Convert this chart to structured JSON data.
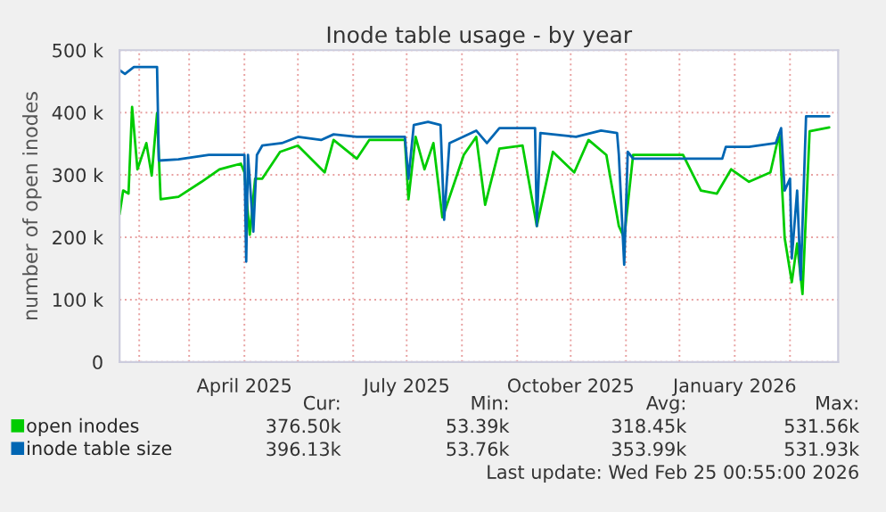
{
  "chart_data": {
    "type": "line",
    "title": "Inode table usage - by year",
    "ylabel": "number of open inodes",
    "x": [
      "2025-01-21",
      "2025-01-24",
      "2025-01-29",
      "2025-02-11",
      "2025-02-12",
      "2025-02-23",
      "2025-03-12",
      "2025-04-01",
      "2025-04-02",
      "2025-04-03",
      "2025-04-06",
      "2025-04-08",
      "2025-04-11",
      "2025-04-22",
      "2025-05-01",
      "2025-05-14",
      "2025-05-21",
      "2025-06-03",
      "2025-06-30",
      "2025-07-02",
      "2025-07-05",
      "2025-07-13",
      "2025-07-20",
      "2025-07-22",
      "2025-07-25",
      "2025-08-09",
      "2025-08-15",
      "2025-08-22",
      "2025-09-11",
      "2025-09-12",
      "2025-09-14",
      "2025-10-04",
      "2025-10-18",
      "2025-10-27",
      "2025-10-28",
      "2025-10-31",
      "2025-11-02",
      "2025-11-05",
      "2025-11-30",
      "2025-12-25",
      "2025-12-27",
      "2026-01-09",
      "2026-01-24",
      "2026-01-27",
      "2026-01-29",
      "2026-02-01",
      "2026-02-02",
      "2026-02-05",
      "2026-02-07",
      "2026-02-10",
      "2026-02-23"
    ],
    "series": [
      {
        "name": "open inodes",
        "color": "#00cc00",
        "x": [
          "2025-01-21",
          "2025-01-23",
          "2025-01-26",
          "2025-01-28",
          "2025-01-31",
          "2025-02-05",
          "2025-02-08",
          "2025-02-11",
          "2025-02-13",
          "2025-02-23",
          "2025-03-08",
          "2025-03-18",
          "2025-03-30",
          "2025-04-01",
          "2025-04-04",
          "2025-04-07",
          "2025-04-11",
          "2025-04-21",
          "2025-05-01",
          "2025-05-16",
          "2025-05-21",
          "2025-06-03",
          "2025-06-10",
          "2025-06-30",
          "2025-07-02",
          "2025-07-06",
          "2025-07-11",
          "2025-07-16",
          "2025-07-21",
          "2025-07-23",
          "2025-08-02",
          "2025-08-09",
          "2025-08-14",
          "2025-08-22",
          "2025-09-04",
          "2025-09-12",
          "2025-09-21",
          "2025-10-03",
          "2025-10-11",
          "2025-10-21",
          "2025-10-28",
          "2025-10-31",
          "2025-11-05",
          "2025-12-03",
          "2025-12-13",
          "2025-12-22",
          "2025-12-30",
          "2026-01-09",
          "2026-01-21",
          "2026-01-26",
          "2026-01-29",
          "2026-02-02",
          "2026-02-05",
          "2026-02-08",
          "2026-02-12",
          "2026-02-23"
        ],
        "values": [
          237,
          275,
          270,
          409,
          309,
          351,
          299,
          399,
          261,
          265,
          289,
          309,
          318,
          304,
          204,
          294,
          294,
          337,
          347,
          304,
          356,
          326,
          356,
          356,
          261,
          361,
          309,
          351,
          232,
          247,
          332,
          361,
          252,
          342,
          347,
          218,
          337,
          304,
          356,
          332,
          218,
          199,
          332,
          332,
          275,
          270,
          309,
          289,
          304,
          367,
          199,
          128,
          190,
          109,
          370,
          376
        ]
      },
      {
        "name": "inode table size",
        "color": "#0066b3",
        "values": [
          468,
          462,
          473,
          473,
          323,
          325,
          332,
          332,
          161,
          332,
          209,
          332,
          347,
          351,
          361,
          356,
          365,
          361,
          361,
          294,
          380,
          385,
          380,
          228,
          351,
          371,
          351,
          375,
          375,
          218,
          367,
          361,
          371,
          367,
          332,
          156,
          337,
          326,
          326,
          326,
          345,
          345,
          351,
          375,
          275,
          294,
          166,
          275,
          132,
          394,
          394
        ]
      }
    ],
    "xlim": [
      "2025-01-21",
      "2026-02-28"
    ],
    "xticks": [
      {
        "value": "2025-02-01",
        "label": null
      },
      {
        "value": "2025-03-01",
        "label": null
      },
      {
        "value": "2025-04-01",
        "label": "April 2025"
      },
      {
        "value": "2025-05-01",
        "label": null
      },
      {
        "value": "2025-06-01",
        "label": null
      },
      {
        "value": "2025-07-01",
        "label": "July 2025"
      },
      {
        "value": "2025-08-01",
        "label": null
      },
      {
        "value": "2025-09-01",
        "label": null
      },
      {
        "value": "2025-10-01",
        "label": "October 2025"
      },
      {
        "value": "2025-11-01",
        "label": null
      },
      {
        "value": "2025-12-01",
        "label": null
      },
      {
        "value": "2026-01-01",
        "label": "January 2026"
      },
      {
        "value": "2026-02-01",
        "label": null
      }
    ],
    "ylim": [
      0,
      500
    ],
    "yticks": [
      0,
      {
        "value": 100,
        "label": "100 k"
      },
      {
        "value": 200,
        "label": "200 k"
      },
      {
        "value": 300,
        "label": "300 k"
      },
      {
        "value": 400,
        "label": "400 k"
      },
      {
        "value": 500,
        "label": "500 k"
      }
    ],
    "grid": true,
    "legend": "bottom left",
    "annotations": [
      "Cur:",
      "Min:",
      "Avg:",
      "Max:",
      "376.50k",
      "53.39k",
      "318.45k",
      "531.56k",
      "396.13k",
      "53.76k",
      "353.99k",
      "531.93k",
      "Last update: Wed Feb 25 00:55:00 2026"
    ]
  }
}
